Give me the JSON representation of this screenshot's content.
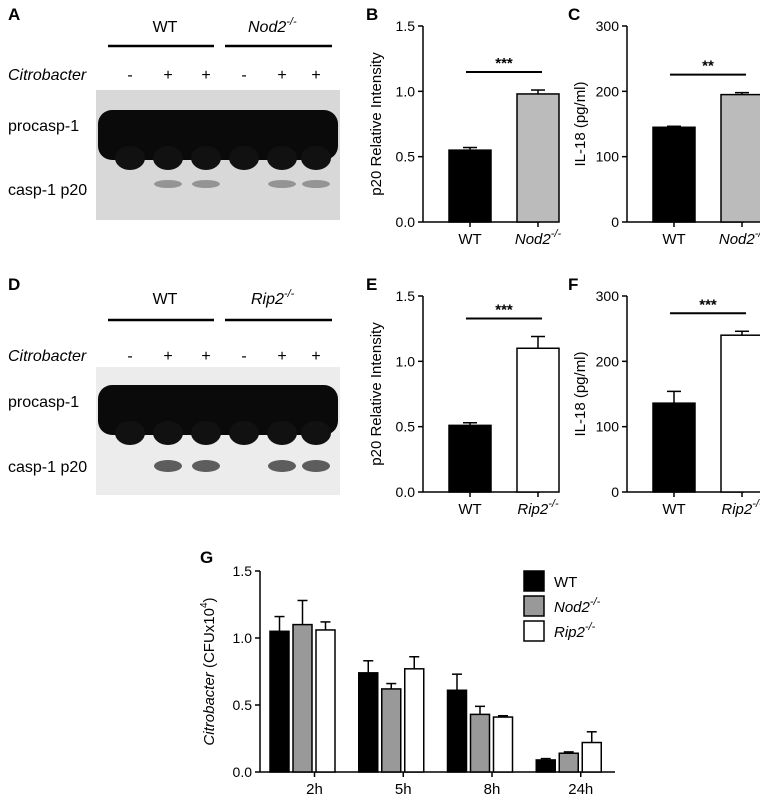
{
  "panels": {
    "A": "A",
    "B": "B",
    "C": "C",
    "D": "D",
    "E": "E",
    "F": "F",
    "G": "G"
  },
  "blots": [
    {
      "id": "A",
      "groups": [
        "WT",
        "Nod2",
        "-/-"
      ],
      "treatment_label": "Citrobacter",
      "lanes": [
        "-",
        "+",
        "+",
        "-",
        "+",
        "+"
      ],
      "bands": [
        "procasp-1",
        "casp-1 p20"
      ]
    },
    {
      "id": "D",
      "groups": [
        "WT",
        "Rip2",
        "-/-"
      ],
      "treatment_label": "Citrobacter",
      "lanes": [
        "-",
        "+",
        "+",
        "-",
        "+",
        "+"
      ],
      "bands": [
        "procasp-1",
        "casp-1 p20"
      ]
    }
  ],
  "chart_data": [
    {
      "id": "B",
      "type": "bar",
      "ylabel": "p20 Relative Intensity",
      "ylim": [
        0,
        1.5
      ],
      "yticks": [
        "0.0",
        "0.5",
        "1.0",
        "1.5"
      ],
      "categories": [
        "WT",
        "Nod2"
      ],
      "cat_sup": [
        "",
        "-/-"
      ],
      "values": [
        0.55,
        0.98
      ],
      "errors": [
        0.02,
        0.03
      ],
      "fills": [
        "#000000",
        "#bbbbbb"
      ],
      "significance": "***"
    },
    {
      "id": "C",
      "type": "bar",
      "ylabel": "IL-18 (pg/ml)",
      "ylim": [
        0,
        300
      ],
      "yticks": [
        "0",
        "100",
        "200",
        "300"
      ],
      "categories": [
        "WT",
        "Nod2"
      ],
      "cat_sup": [
        "",
        "-/-"
      ],
      "values": [
        145,
        195
      ],
      "errors": [
        1.5,
        3
      ],
      "fills": [
        "#000000",
        "#bbbbbb"
      ],
      "significance": "**"
    },
    {
      "id": "E",
      "type": "bar",
      "ylabel": "p20 Relative Intensity",
      "ylim": [
        0,
        1.5
      ],
      "yticks": [
        "0.0",
        "0.5",
        "1.0",
        "1.5"
      ],
      "categories": [
        "WT",
        "Rip2"
      ],
      "cat_sup": [
        "",
        "-/-"
      ],
      "values": [
        0.51,
        1.1
      ],
      "errors": [
        0.02,
        0.09
      ],
      "fills": [
        "#000000",
        "#ffffff"
      ],
      "significance": "***"
    },
    {
      "id": "F",
      "type": "bar",
      "ylabel": "IL-18 (pg/ml)",
      "ylim": [
        0,
        300
      ],
      "yticks": [
        "0",
        "100",
        "200",
        "300"
      ],
      "categories": [
        "WT",
        "Rip2"
      ],
      "cat_sup": [
        "",
        "-/-"
      ],
      "values": [
        136,
        240
      ],
      "errors": [
        18,
        6
      ],
      "fills": [
        "#000000",
        "#ffffff"
      ],
      "significance": "***"
    },
    {
      "id": "G",
      "type": "bar",
      "ylabel": "Citrobacter",
      "ylabel_suffix": "(CFUx10",
      "ylabel_sup": "4",
      "ylabel_close": ")",
      "ylim": [
        0,
        1.5
      ],
      "yticks": [
        "0.0",
        "0.5",
        "1.0",
        "1.5"
      ],
      "categories": [
        "2h",
        "5h",
        "8h",
        "24h"
      ],
      "series": [
        {
          "name": "WT",
          "values": [
            1.05,
            0.74,
            0.61,
            0.09
          ],
          "errors": [
            0.11,
            0.09,
            0.12,
            0.01
          ],
          "fill": "#000000"
        },
        {
          "name": "Nod2",
          "name_sup": "-/-",
          "values": [
            1.1,
            0.62,
            0.43,
            0.14
          ],
          "errors": [
            0.18,
            0.04,
            0.06,
            0.01
          ],
          "fill": "#999999"
        },
        {
          "name": "Rip2",
          "name_sup": "-/-",
          "values": [
            1.06,
            0.77,
            0.41,
            0.22
          ],
          "errors": [
            0.06,
            0.09,
            0.01,
            0.08
          ],
          "fill": "#ffffff"
        }
      ],
      "legend_position": "top-right"
    }
  ]
}
